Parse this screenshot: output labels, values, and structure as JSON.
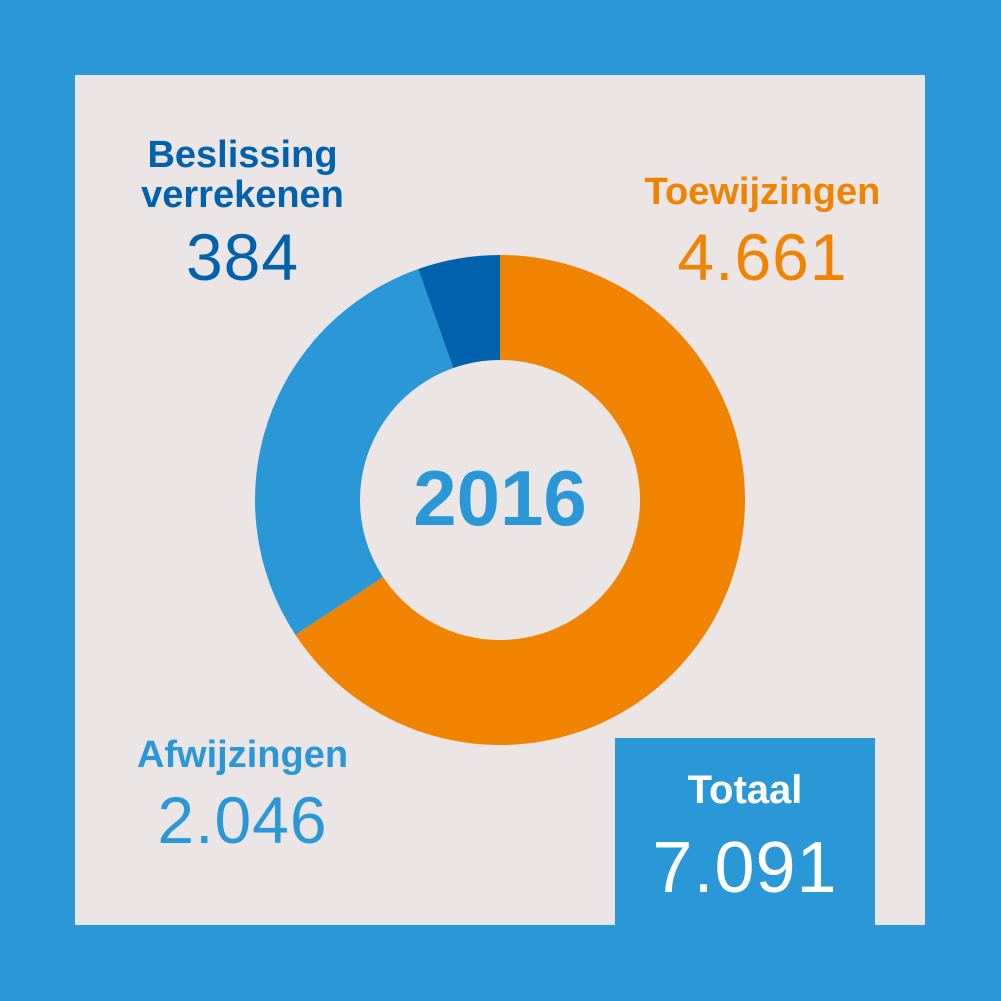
{
  "colors": {
    "background": "#2a98d6",
    "panel": "#ebe5e5",
    "orange": "#f08300",
    "dark_blue": "#0062ad",
    "light_blue": "#2a98d6",
    "white": "#ffffff"
  },
  "center_label": "2016",
  "labels": {
    "beslissing": {
      "line1": "Beslissing",
      "line2": "verrekenen",
      "value": "384"
    },
    "toewijzingen": {
      "name": "Toewijzingen",
      "value": "4.661"
    },
    "afwijzingen": {
      "name": "Afwijzingen",
      "value": "2.046"
    }
  },
  "total": {
    "label": "Totaal",
    "value": "7.091"
  },
  "chart_data": {
    "type": "pie",
    "variant": "donut",
    "center_text": "2016",
    "categories": [
      "Toewijzingen",
      "Afwijzingen",
      "Beslissing verrekenen"
    ],
    "values": [
      4661,
      2046,
      384
    ],
    "colors": [
      "#f08300",
      "#2a98d6",
      "#0062ad"
    ],
    "start": "12 o'clock",
    "direction": "clockwise",
    "total": 7091
  }
}
